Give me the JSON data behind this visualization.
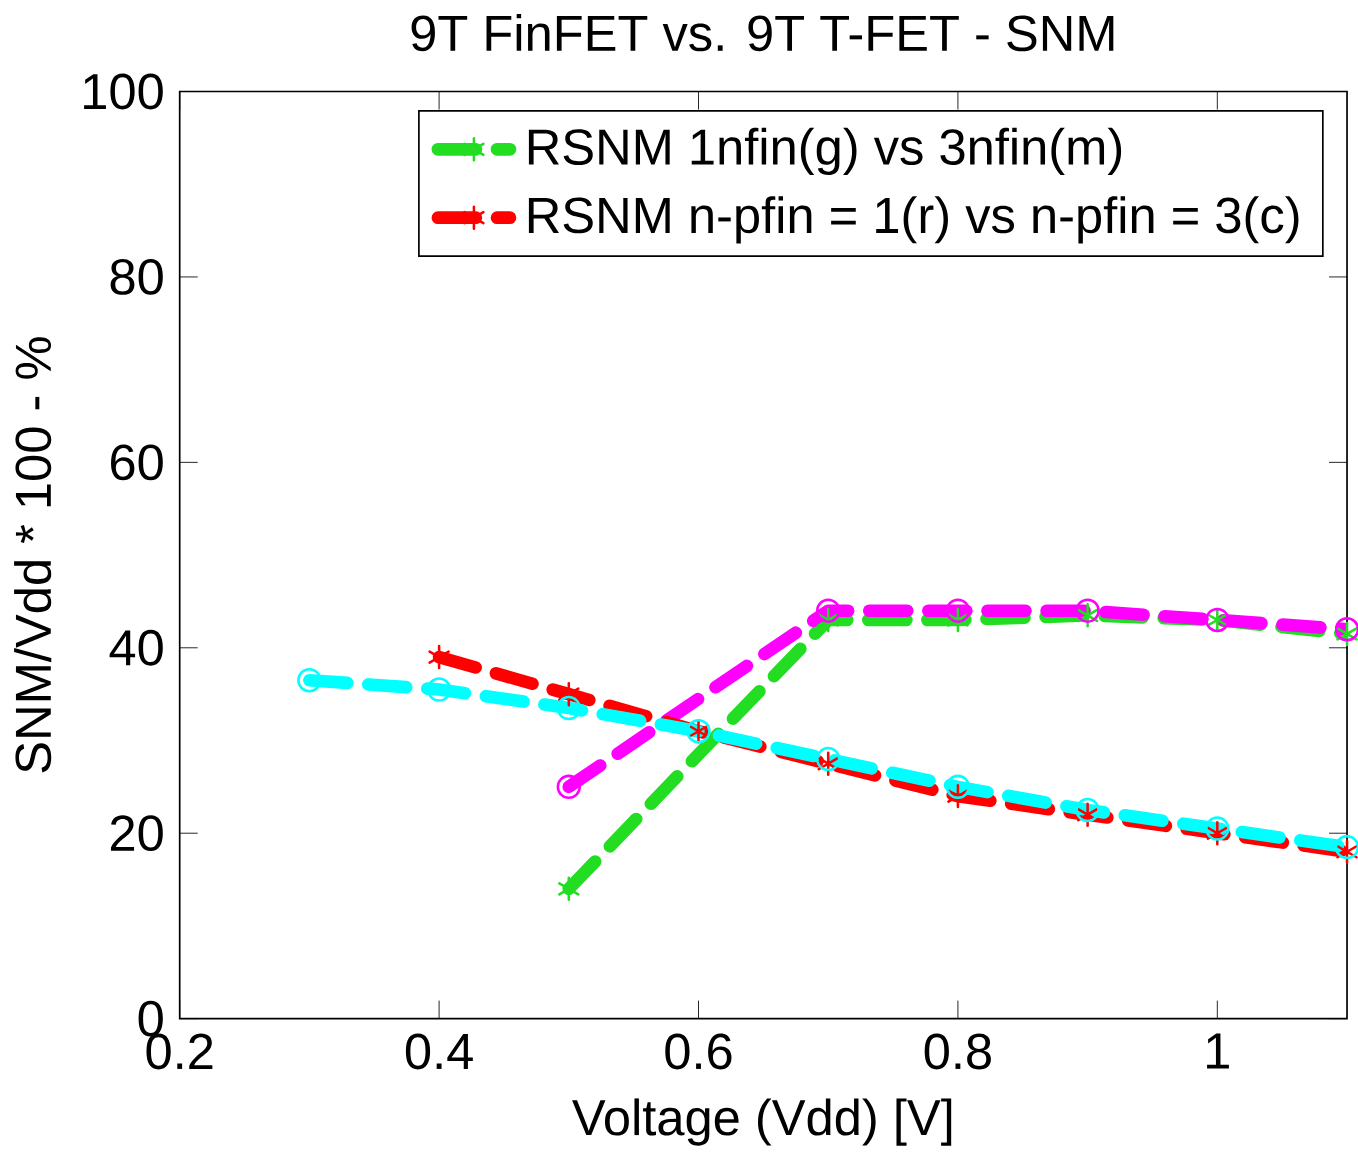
{
  "chart_data": {
    "type": "line",
    "title": "9T FinFET vs. 9T T-FET - SNM",
    "xlabel": "Voltage (Vdd) [V]",
    "ylabel": "SNM/Vdd * 100 - %",
    "xlim": [
      0.2,
      1.1
    ],
    "xticks": [
      0.2,
      0.4,
      0.6,
      0.8,
      1
    ],
    "ylim": [
      0,
      100
    ],
    "yticks": [
      0,
      20,
      40,
      60,
      80,
      100
    ],
    "legend": "top right",
    "line_style": "dashed",
    "grid": false,
    "series": [
      {
        "name": "RSNM 1nfin(g) vs 3nfin(m)",
        "color": "#22dd22",
        "marker": "cross",
        "x": [
          0.5,
          0.7,
          0.8,
          0.9,
          1.0,
          1.1
        ],
        "values": [
          14,
          43,
          43,
          43.5,
          43,
          41.5
        ]
      },
      {
        "color": "#ff00ff",
        "marker": "circle",
        "x": [
          0.5,
          0.7,
          0.8,
          0.9,
          1.0,
          1.1
        ],
        "values": [
          25,
          44,
          44,
          44,
          43,
          42
        ]
      },
      {
        "name": "RSNM n-pfin = 1(r) vs n-pfin = 3(c)",
        "color": "#ff0000",
        "marker": "cross",
        "x": [
          0.4,
          0.5,
          0.6,
          0.7,
          0.8,
          0.9,
          1.0,
          1.1
        ],
        "values": [
          39,
          35,
          31,
          27.5,
          24,
          22,
          20,
          18
        ]
      },
      {
        "color": "#00ffff",
        "marker": "circle",
        "x": [
          0.3,
          0.4,
          0.5,
          0.6,
          0.7,
          0.8,
          0.9,
          1.0,
          1.1
        ],
        "values": [
          36.5,
          35.5,
          33.5,
          31,
          28,
          25,
          22.5,
          20.5,
          18.5
        ]
      }
    ]
  }
}
